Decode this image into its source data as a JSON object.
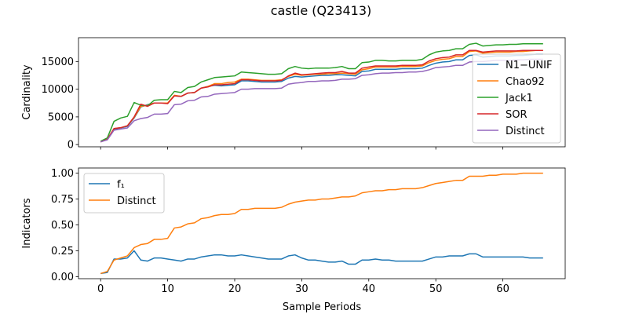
{
  "chart_data": [
    {
      "type": "line",
      "title": "castle (Q23413)",
      "xlabel": "",
      "ylabel": "Cardinality",
      "xlim": [
        -3.3,
        69.3
      ],
      "ylim": [
        -400,
        19300
      ],
      "xticks": [
        0,
        10,
        20,
        30,
        40,
        50,
        60
      ],
      "yticks": [
        0,
        5000,
        10000,
        15000
      ],
      "ytick_labels": [
        "0",
        "5000",
        "10000",
        "15000"
      ],
      "grid": false,
      "legend": "lower-right",
      "x": [
        0,
        1,
        2,
        3,
        4,
        5,
        6,
        7,
        8,
        9,
        10,
        11,
        12,
        13,
        14,
        15,
        16,
        17,
        18,
        19,
        20,
        21,
        22,
        23,
        24,
        25,
        26,
        27,
        28,
        29,
        30,
        31,
        32,
        33,
        34,
        35,
        36,
        37,
        38,
        39,
        40,
        41,
        42,
        43,
        44,
        45,
        46,
        47,
        48,
        49,
        50,
        51,
        52,
        53,
        54,
        55,
        56,
        57,
        58,
        59,
        60,
        61,
        62,
        63,
        64,
        65,
        66
      ],
      "series": [
        {
          "name": "N1−UNIF",
          "color": "#1f77b4",
          "values": [
            500,
            900,
            2800,
            3000,
            3300,
            4800,
            6800,
            7200,
            7500,
            7500,
            7500,
            8800,
            8700,
            9300,
            9400,
            10200,
            10500,
            10700,
            10600,
            10700,
            10800,
            11500,
            11500,
            11400,
            11300,
            11300,
            11300,
            11400,
            12000,
            12300,
            12200,
            12300,
            12400,
            12500,
            12500,
            12600,
            12600,
            12500,
            12400,
            13200,
            13300,
            13600,
            13600,
            13600,
            13600,
            13700,
            13700,
            13700,
            13800,
            14300,
            14700,
            14900,
            15000,
            15300,
            15300,
            16100,
            16200,
            15800,
            15900,
            16000,
            16000,
            16000,
            16100,
            16100,
            16200,
            16300,
            16300
          ]
        },
        {
          "name": "Chao92",
          "color": "#ff7f0e",
          "values": [
            500,
            950,
            2900,
            3050,
            3400,
            4900,
            6900,
            7100,
            7500,
            7500,
            7500,
            8900,
            8700,
            9300,
            9400,
            10200,
            10500,
            11000,
            11000,
            11200,
            11300,
            11800,
            11800,
            11700,
            11600,
            11600,
            11600,
            11700,
            12300,
            12700,
            12500,
            12600,
            12700,
            12700,
            12800,
            12800,
            12900,
            12800,
            12700,
            13500,
            13700,
            14000,
            14000,
            14000,
            14000,
            14100,
            14100,
            14100,
            14200,
            14800,
            15200,
            15400,
            15500,
            15900,
            15900,
            16800,
            16900,
            16500,
            16600,
            16700,
            16700,
            16700,
            16800,
            16800,
            16900,
            17000,
            17000
          ]
        },
        {
          "name": "Jack1",
          "color": "#2ca02c",
          "values": [
            600,
            1200,
            4200,
            4800,
            5100,
            7600,
            7100,
            7000,
            8000,
            8100,
            8100,
            9600,
            9400,
            10300,
            10500,
            11300,
            11700,
            12100,
            12200,
            12300,
            12400,
            13100,
            13000,
            12900,
            12800,
            12700,
            12700,
            12800,
            13700,
            14100,
            13800,
            13700,
            13800,
            13800,
            13800,
            13900,
            14100,
            13700,
            13700,
            14800,
            14900,
            15200,
            15200,
            15100,
            15100,
            15200,
            15200,
            15200,
            15400,
            16200,
            16700,
            16900,
            17000,
            17300,
            17300,
            18100,
            18300,
            17800,
            17900,
            18000,
            18000,
            18100,
            18100,
            18200,
            18200,
            18200,
            18200
          ]
        },
        {
          "name": "SOR",
          "color": "#d62728",
          "values": [
            500,
            950,
            2900,
            3050,
            3400,
            5000,
            7300,
            6900,
            7500,
            7500,
            7400,
            8800,
            8700,
            9300,
            9400,
            10200,
            10400,
            10800,
            10800,
            10900,
            11000,
            11700,
            11700,
            11600,
            11500,
            11500,
            11500,
            11600,
            12400,
            12900,
            12600,
            12700,
            12800,
            12900,
            13000,
            13000,
            13200,
            12900,
            12900,
            13800,
            14000,
            14200,
            14200,
            14200,
            14200,
            14300,
            14300,
            14300,
            14400,
            15100,
            15500,
            15700,
            15800,
            16200,
            16200,
            17000,
            17000,
            16700,
            16800,
            16900,
            16900,
            16900,
            16900,
            17000,
            17000,
            17000,
            17000
          ]
        },
        {
          "name": "Distinct",
          "color": "#9467bd",
          "values": [
            500,
            850,
            2600,
            2800,
            3000,
            4300,
            4700,
            4900,
            5500,
            5500,
            5600,
            7200,
            7300,
            7900,
            8000,
            8600,
            8700,
            9100,
            9200,
            9300,
            9400,
            10000,
            10000,
            10100,
            10100,
            10100,
            10100,
            10200,
            10900,
            11100,
            11200,
            11400,
            11400,
            11500,
            11500,
            11600,
            11800,
            11800,
            11900,
            12500,
            12600,
            12800,
            12900,
            12900,
            13000,
            13000,
            13100,
            13100,
            13200,
            13500,
            13900,
            14000,
            14100,
            14300,
            14300,
            14900,
            15000,
            15000,
            15100,
            15200,
            15200,
            15200,
            15300,
            15300,
            15400,
            15400,
            15400
          ]
        }
      ]
    },
    {
      "type": "line",
      "title": "",
      "xlabel": "Sample Periods",
      "ylabel": "Indicators",
      "xlim": [
        -3.3,
        69.3
      ],
      "ylim": [
        -0.02,
        1.05
      ],
      "xticks": [
        0,
        10,
        20,
        30,
        40,
        50,
        60
      ],
      "xtick_labels": [
        "0",
        "10",
        "20",
        "30",
        "40",
        "50",
        "60"
      ],
      "yticks": [
        0,
        0.25,
        0.5,
        0.75,
        1.0
      ],
      "ytick_labels": [
        "0.00",
        "0.25",
        "0.50",
        "0.75",
        "1.00"
      ],
      "grid": false,
      "legend": "upper-left",
      "x": [
        0,
        1,
        2,
        3,
        4,
        5,
        6,
        7,
        8,
        9,
        10,
        11,
        12,
        13,
        14,
        15,
        16,
        17,
        18,
        19,
        20,
        21,
        22,
        23,
        24,
        25,
        26,
        27,
        28,
        29,
        30,
        31,
        32,
        33,
        34,
        35,
        36,
        37,
        38,
        39,
        40,
        41,
        42,
        43,
        44,
        45,
        46,
        47,
        48,
        49,
        50,
        51,
        52,
        53,
        54,
        55,
        56,
        57,
        58,
        59,
        60,
        61,
        62,
        63,
        64,
        65,
        66
      ],
      "series": [
        {
          "name": "f₁",
          "color": "#1f77b4",
          "values": [
            0.03,
            0.04,
            0.17,
            0.17,
            0.18,
            0.25,
            0.16,
            0.15,
            0.18,
            0.18,
            0.17,
            0.16,
            0.15,
            0.17,
            0.17,
            0.19,
            0.2,
            0.21,
            0.21,
            0.2,
            0.2,
            0.21,
            0.2,
            0.19,
            0.18,
            0.17,
            0.17,
            0.17,
            0.2,
            0.21,
            0.18,
            0.16,
            0.16,
            0.15,
            0.14,
            0.14,
            0.15,
            0.12,
            0.12,
            0.16,
            0.16,
            0.17,
            0.16,
            0.16,
            0.15,
            0.15,
            0.15,
            0.15,
            0.15,
            0.17,
            0.19,
            0.19,
            0.2,
            0.2,
            0.2,
            0.22,
            0.22,
            0.19,
            0.19,
            0.19,
            0.19,
            0.19,
            0.19,
            0.19,
            0.18,
            0.18,
            0.18
          ]
        },
        {
          "name": "Distinct",
          "color": "#ff7f0e",
          "values": [
            0.03,
            0.05,
            0.16,
            0.18,
            0.2,
            0.28,
            0.31,
            0.32,
            0.36,
            0.36,
            0.37,
            0.47,
            0.48,
            0.51,
            0.52,
            0.56,
            0.57,
            0.59,
            0.6,
            0.6,
            0.61,
            0.65,
            0.65,
            0.66,
            0.66,
            0.66,
            0.66,
            0.67,
            0.7,
            0.72,
            0.73,
            0.74,
            0.74,
            0.75,
            0.75,
            0.76,
            0.77,
            0.77,
            0.78,
            0.81,
            0.82,
            0.83,
            0.83,
            0.84,
            0.84,
            0.85,
            0.85,
            0.85,
            0.86,
            0.88,
            0.9,
            0.91,
            0.92,
            0.93,
            0.93,
            0.97,
            0.97,
            0.97,
            0.98,
            0.98,
            0.99,
            0.99,
            0.99,
            1.0,
            1.0,
            1.0,
            1.0
          ]
        }
      ]
    }
  ]
}
